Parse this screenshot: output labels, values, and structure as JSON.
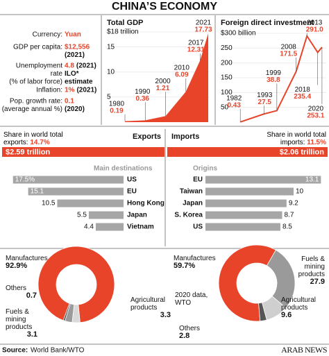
{
  "title": "CHINA’S ECONOMY",
  "stats": [
    {
      "label": [
        "Currency:"
      ],
      "value": "Yuan"
    },
    {
      "label": [
        "GDP per capita:"
      ],
      "value": "$12,556",
      "note": [
        "(2021)"
      ]
    },
    {
      "label": [
        "Unemployment",
        "rate",
        "(% of labor force)"
      ],
      "value": "4.8",
      "note": [
        "(2021)",
        "ILO*",
        "estimate"
      ]
    },
    {
      "label": [
        "Inflation:"
      ],
      "value": "1%",
      "note": [
        "(2021)"
      ]
    },
    {
      "label": [
        "Pop. growth rate:",
        "(average annual %)"
      ],
      "value": "0.1",
      "note": [
        "(2020)"
      ]
    }
  ],
  "chart_data": [
    {
      "type": "area",
      "title": "Total GDP",
      "x": [
        1980,
        1990,
        2000,
        2010,
        2017,
        2021
      ],
      "values": [
        0.19,
        0.36,
        1.21,
        6.09,
        12.31,
        17.73
      ],
      "color": "#e8442a",
      "xlim": [
        1980,
        2021
      ],
      "ylim": [
        0,
        18
      ],
      "yticks": [
        5,
        10,
        15,
        {
          "value": 18,
          "label": "$18 trillion"
        }
      ]
    },
    {
      "type": "line",
      "title": "Foreign direct investment",
      "x": [
        1982,
        1993,
        1999,
        2008,
        2013,
        2018,
        2020
      ],
      "values": [
        0.43,
        27.5,
        38.8,
        171.5,
        291.0,
        235.4,
        253.1
      ],
      "value_labels": [
        "0.43",
        "27.5",
        "38.8",
        "171.5",
        "291.0",
        "235.4",
        "253.1"
      ],
      "color": "#e8442a",
      "xlim": [
        1980,
        2021
      ],
      "ylim": [
        0,
        300
      ],
      "yticks": [
        50,
        100,
        150,
        200,
        250,
        {
          "value": 300,
          "label": "$300 billion"
        }
      ]
    },
    {
      "type": "hbar",
      "title": "Exports",
      "share_label": "Share in world total exports:",
      "share": "14.7%",
      "total": "$2.59 trillion",
      "subtitle": "Main destinations",
      "categories": [
        "US",
        "EU",
        "Hong Kong",
        "Japan",
        "Vietnam"
      ],
      "values": [
        17.5,
        15.1,
        10.5,
        5.5,
        4.4
      ],
      "value_labels": [
        "17.5%",
        "15.1",
        "10.5",
        "5.5",
        "4.4"
      ],
      "color": "#a6a6a6",
      "bar_direction": "left"
    },
    {
      "type": "hbar",
      "title": "Imports",
      "share_label": "Share in world total imports:",
      "share": "11.5%",
      "total": "$2.06 trillion",
      "subtitle": "Origins",
      "categories": [
        "EU",
        "Taiwan",
        "Japan",
        "S. Korea",
        "US"
      ],
      "values": [
        13.1,
        10,
        9.2,
        8.7,
        8.5
      ],
      "color": "#a6a6a6",
      "bar_direction": "right"
    },
    {
      "type": "donut",
      "categories": [
        "Manufactures",
        "Agricultural products",
        "Fuels & mining products",
        "Others"
      ],
      "values": [
        92.9,
        3.3,
        3.1,
        0.7
      ],
      "value_labels": [
        "92.9%",
        "3.3",
        "3.1",
        "0.7"
      ],
      "colors": [
        "#e8442a",
        "#d9d9d9",
        "#9a9a9a",
        "#444444"
      ]
    },
    {
      "type": "donut",
      "note": "2020 data, WTO",
      "categories": [
        "Manufactures",
        "Fuels & mining products",
        "Agricultural products",
        "Others"
      ],
      "values": [
        59.7,
        27.9,
        9.6,
        2.8
      ],
      "value_labels": [
        "59.7%",
        "27.9",
        "9.6",
        "2.8"
      ],
      "colors": [
        "#e8442a",
        "#9a9a9a",
        "#cfcfcf",
        "#555555"
      ]
    }
  ],
  "source_label": "Source:",
  "source": "World Bank/WTO",
  "brand": "ARAB NEWS"
}
